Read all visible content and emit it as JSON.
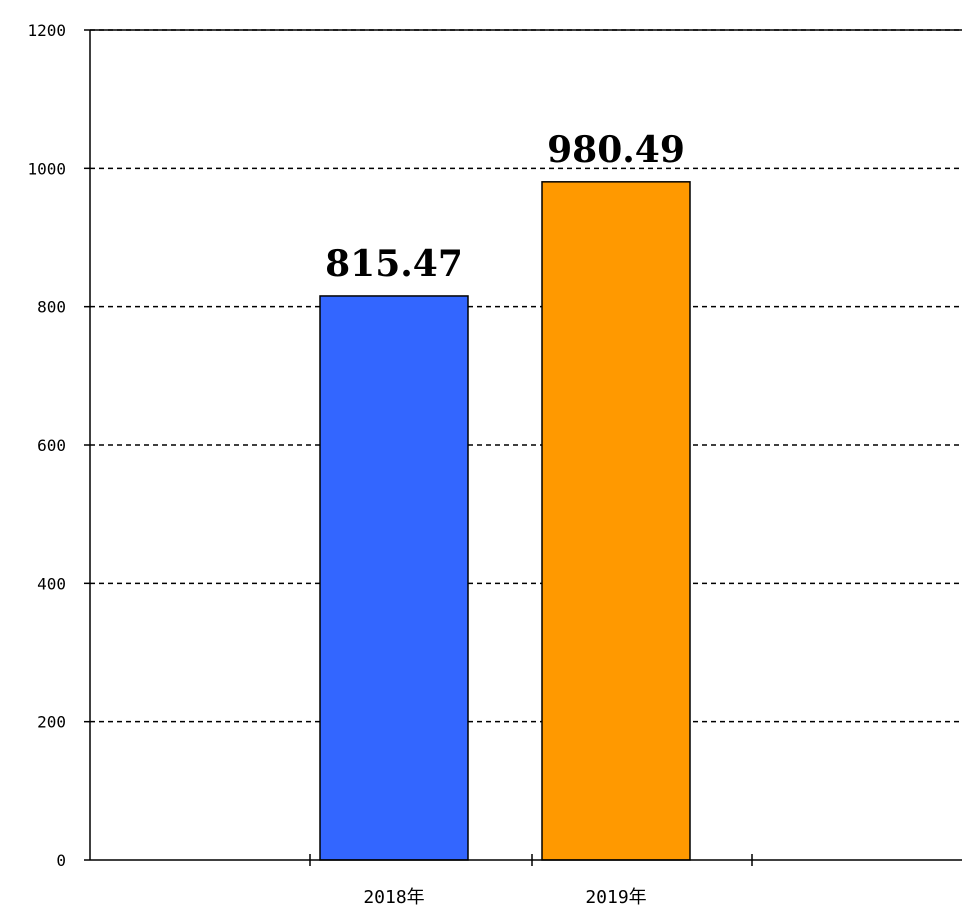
{
  "chart_data": {
    "type": "bar",
    "title": "",
    "xlabel": "",
    "ylabel": "",
    "categories": [
      "",
      "2018年",
      "2019年",
      ""
    ],
    "values": [
      null,
      815.47,
      980.49,
      null
    ],
    "data_labels": [
      "",
      "815.47",
      "980.49",
      ""
    ],
    "bar_colors": [
      "",
      "#3366ff",
      "#ff9900",
      ""
    ],
    "ylim": [
      0,
      1200
    ],
    "yticks": [
      0,
      200,
      400,
      600,
      800,
      1000,
      1200
    ],
    "ytick_labels": [
      "0",
      "200",
      "400",
      "600",
      "800",
      "1000",
      "1200"
    ],
    "grid": true,
    "grid_style": "dashed",
    "legend": "none"
  }
}
